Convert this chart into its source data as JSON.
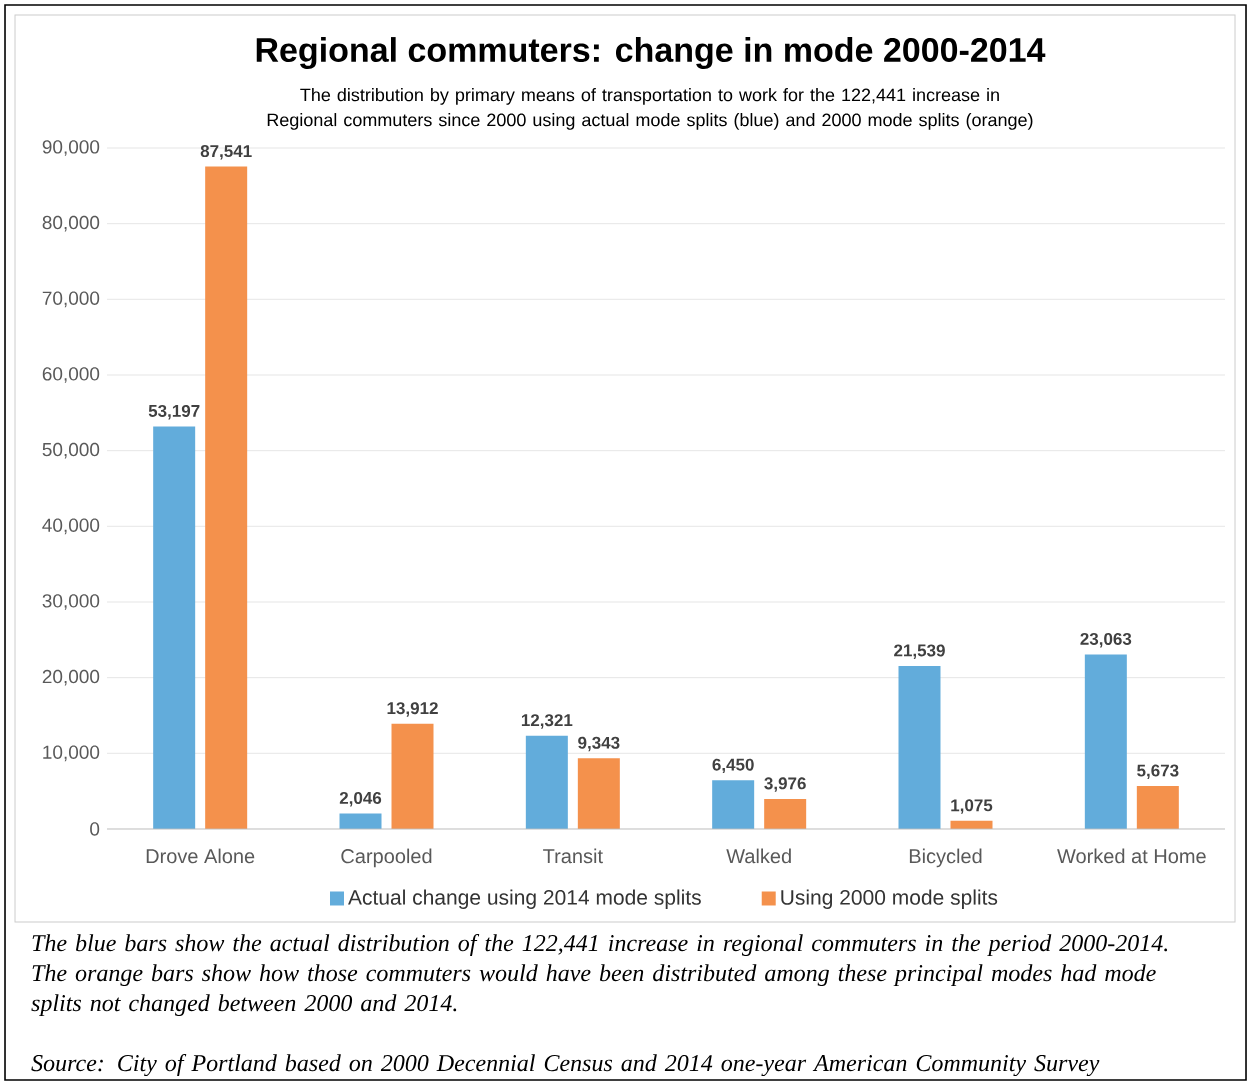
{
  "chart_data": {
    "type": "bar",
    "title": "Regional commuters: change in mode 2000-2014",
    "subtitle": "The distribution by primary means of transportation to work for the 122,441 increase in Regional commuters since 2000 using actual mode splits (blue) and 2000 mode splits (orange)",
    "categories": [
      "Drove Alone",
      "Carpooled",
      "Transit",
      "Walked",
      "Bicycled",
      "Worked at Home"
    ],
    "series": [
      {
        "name": "Actual change using 2014 mode splits",
        "color": "#62acdb",
        "values": [
          53197,
          2046,
          12321,
          6450,
          21539,
          23063
        ],
        "value_labels": [
          "53,197",
          "2,046",
          "12,321",
          "6,450",
          "21,539",
          "23,063"
        ]
      },
      {
        "name": "Using 2000 mode splits",
        "color": "#f4914c",
        "values": [
          87541,
          13912,
          9343,
          3976,
          1075,
          5673
        ],
        "value_labels": [
          "87,541",
          "13,912",
          "9,343",
          "3,976",
          "1,075",
          "5,673"
        ]
      }
    ],
    "ylim": [
      0,
      90000
    ],
    "yticks": [
      0,
      {
        "value": 10000,
        "label": "10,000"
      },
      {
        "value": 20000,
        "label": "20,000"
      },
      {
        "value": 30000,
        "label": "30,000"
      },
      {
        "value": 40000,
        "label": "40,000"
      },
      {
        "value": 50000,
        "label": "50,000"
      },
      {
        "value": 60000,
        "label": "60,000"
      },
      {
        "value": 70000,
        "label": "70,000"
      },
      {
        "value": 80000,
        "label": "80,000"
      },
      {
        "value": 90000,
        "label": "90,000"
      }
    ],
    "grid": "y",
    "legend": "bottom",
    "annotations": [
      "The blue bars show the actual distribution of the 122,441 increase in regional commuters in the period 2000-2014. The orange bars show how those commuters would have been distributed among these principal modes had mode splits not changed between 2000 and 2014.",
      "Source: City of Portland based on 2000 Decennial Census and 2014 one-year American Community Survey"
    ]
  }
}
